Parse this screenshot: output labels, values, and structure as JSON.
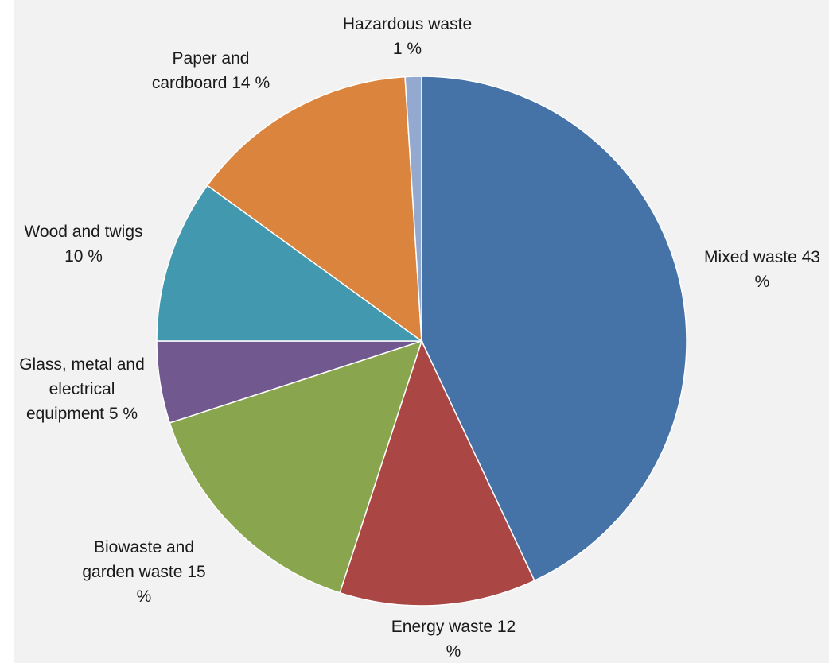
{
  "chart_data": {
    "type": "pie",
    "title": "",
    "slices": [
      {
        "label": "Mixed waste 43 %",
        "value": 43,
        "color": "#4572a7"
      },
      {
        "label": "Energy waste 12 %",
        "value": 12,
        "color": "#aa4643"
      },
      {
        "label": "Biowaste and garden waste 15 %",
        "value": 15,
        "color": "#89a54e"
      },
      {
        "label": "Glass, metal and electrical equipment 5 %",
        "value": 5,
        "color": "#71588f"
      },
      {
        "label": "Wood and twigs 10 %",
        "value": 10,
        "color": "#4198af"
      },
      {
        "label": "Paper and cardboard 14 %",
        "value": 14,
        "color": "#db843d"
      },
      {
        "label": "Hazardous waste 1 %",
        "value": 1,
        "color": "#93a9cf"
      }
    ],
    "start_angle": "12 o'clock",
    "direction": "clockwise",
    "legend": "none",
    "label_placement": "outside"
  }
}
